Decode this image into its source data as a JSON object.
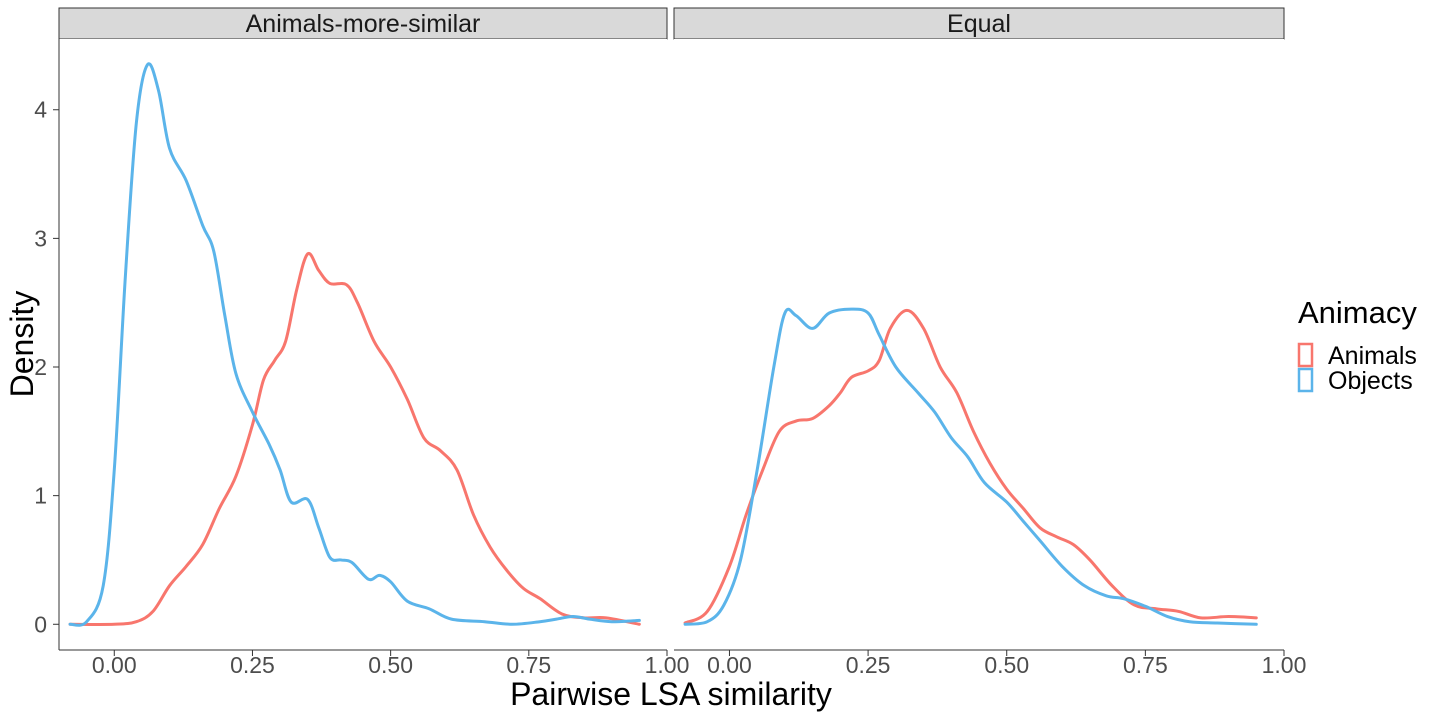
{
  "chart_data": {
    "type": "line",
    "xlabel": "Pairwise LSA similarity",
    "ylabel": "Density",
    "xlim": [
      -0.1,
      1.0
    ],
    "ylim": [
      -0.2,
      4.55
    ],
    "x_ticks": [
      0.0,
      0.25,
      0.5,
      0.75,
      1.0
    ],
    "x_tick_labels": [
      "0.00",
      "0.25",
      "0.50",
      "0.75",
      "1.00"
    ],
    "y_ticks": [
      0,
      1,
      2,
      3,
      4
    ],
    "y_tick_labels": [
      "0",
      "1",
      "2",
      "3",
      "4"
    ],
    "grid": false,
    "legend": {
      "title": "Animacy",
      "position": "right",
      "entries": [
        {
          "label": "Animals",
          "color": "#F8766D"
        },
        {
          "label": "Objects",
          "color": "#5BB4EA"
        }
      ]
    },
    "panels": [
      {
        "strip_label": "Animals-more-similar",
        "series": [
          {
            "name": "Animals",
            "color": "#F8766D",
            "points": [
              [
                -0.08,
                0
              ],
              [
                0.0,
                0.0
              ],
              [
                0.04,
                0.02
              ],
              [
                0.07,
                0.1
              ],
              [
                0.1,
                0.3
              ],
              [
                0.13,
                0.45
              ],
              [
                0.16,
                0.62
              ],
              [
                0.19,
                0.9
              ],
              [
                0.22,
                1.15
              ],
              [
                0.25,
                1.55
              ],
              [
                0.27,
                1.9
              ],
              [
                0.29,
                2.05
              ],
              [
                0.31,
                2.2
              ],
              [
                0.33,
                2.6
              ],
              [
                0.35,
                2.88
              ],
              [
                0.37,
                2.75
              ],
              [
                0.39,
                2.65
              ],
              [
                0.42,
                2.64
              ],
              [
                0.44,
                2.5
              ],
              [
                0.47,
                2.2
              ],
              [
                0.5,
                2.0
              ],
              [
                0.53,
                1.75
              ],
              [
                0.56,
                1.45
              ],
              [
                0.59,
                1.35
              ],
              [
                0.62,
                1.2
              ],
              [
                0.65,
                0.85
              ],
              [
                0.68,
                0.6
              ],
              [
                0.71,
                0.42
              ],
              [
                0.74,
                0.28
              ],
              [
                0.77,
                0.2
              ],
              [
                0.81,
                0.08
              ],
              [
                0.85,
                0.05
              ],
              [
                0.89,
                0.05
              ],
              [
                0.95,
                0.0
              ]
            ]
          },
          {
            "name": "Objects",
            "color": "#5BB4EA",
            "points": [
              [
                -0.08,
                0
              ],
              [
                -0.05,
                0.02
              ],
              [
                -0.02,
                0.3
              ],
              [
                0.0,
                1.2
              ],
              [
                0.02,
                2.7
              ],
              [
                0.04,
                3.9
              ],
              [
                0.06,
                4.35
              ],
              [
                0.08,
                4.15
              ],
              [
                0.1,
                3.7
              ],
              [
                0.13,
                3.45
              ],
              [
                0.16,
                3.1
              ],
              [
                0.18,
                2.9
              ],
              [
                0.2,
                2.4
              ],
              [
                0.22,
                1.95
              ],
              [
                0.25,
                1.65
              ],
              [
                0.28,
                1.4
              ],
              [
                0.3,
                1.2
              ],
              [
                0.32,
                0.95
              ],
              [
                0.35,
                0.97
              ],
              [
                0.37,
                0.75
              ],
              [
                0.39,
                0.52
              ],
              [
                0.41,
                0.5
              ],
              [
                0.43,
                0.48
              ],
              [
                0.46,
                0.35
              ],
              [
                0.48,
                0.38
              ],
              [
                0.5,
                0.33
              ],
              [
                0.53,
                0.18
              ],
              [
                0.57,
                0.12
              ],
              [
                0.61,
                0.04
              ],
              [
                0.67,
                0.02
              ],
              [
                0.72,
                0.0
              ],
              [
                0.77,
                0.02
              ],
              [
                0.8,
                0.04
              ],
              [
                0.83,
                0.06
              ],
              [
                0.86,
                0.04
              ],
              [
                0.9,
                0.02
              ],
              [
                0.95,
                0.03
              ]
            ]
          }
        ]
      },
      {
        "strip_label": "Equal",
        "series": [
          {
            "name": "Animals",
            "color": "#F8766D",
            "points": [
              [
                -0.08,
                0.01
              ],
              [
                -0.04,
                0.1
              ],
              [
                0.0,
                0.45
              ],
              [
                0.03,
                0.85
              ],
              [
                0.06,
                1.2
              ],
              [
                0.09,
                1.5
              ],
              [
                0.12,
                1.58
              ],
              [
                0.15,
                1.6
              ],
              [
                0.18,
                1.7
              ],
              [
                0.2,
                1.8
              ],
              [
                0.22,
                1.92
              ],
              [
                0.25,
                1.97
              ],
              [
                0.27,
                2.05
              ],
              [
                0.29,
                2.3
              ],
              [
                0.32,
                2.44
              ],
              [
                0.35,
                2.3
              ],
              [
                0.38,
                2.0
              ],
              [
                0.41,
                1.8
              ],
              [
                0.44,
                1.5
              ],
              [
                0.47,
                1.25
              ],
              [
                0.5,
                1.05
              ],
              [
                0.53,
                0.9
              ],
              [
                0.56,
                0.75
              ],
              [
                0.59,
                0.68
              ],
              [
                0.62,
                0.62
              ],
              [
                0.65,
                0.5
              ],
              [
                0.69,
                0.3
              ],
              [
                0.73,
                0.15
              ],
              [
                0.77,
                0.12
              ],
              [
                0.81,
                0.1
              ],
              [
                0.85,
                0.05
              ],
              [
                0.9,
                0.06
              ],
              [
                0.95,
                0.05
              ]
            ]
          },
          {
            "name": "Objects",
            "color": "#5BB4EA",
            "points": [
              [
                -0.08,
                0.0
              ],
              [
                -0.04,
                0.02
              ],
              [
                -0.01,
                0.15
              ],
              [
                0.02,
                0.5
              ],
              [
                0.05,
                1.2
              ],
              [
                0.08,
                2.0
              ],
              [
                0.1,
                2.42
              ],
              [
                0.12,
                2.4
              ],
              [
                0.15,
                2.3
              ],
              [
                0.18,
                2.42
              ],
              [
                0.22,
                2.45
              ],
              [
                0.25,
                2.42
              ],
              [
                0.27,
                2.25
              ],
              [
                0.3,
                2.0
              ],
              [
                0.34,
                1.8
              ],
              [
                0.37,
                1.65
              ],
              [
                0.4,
                1.45
              ],
              [
                0.43,
                1.3
              ],
              [
                0.46,
                1.1
              ],
              [
                0.5,
                0.95
              ],
              [
                0.53,
                0.8
              ],
              [
                0.56,
                0.65
              ],
              [
                0.6,
                0.45
              ],
              [
                0.64,
                0.3
              ],
              [
                0.68,
                0.22
              ],
              [
                0.71,
                0.2
              ],
              [
                0.75,
                0.14
              ],
              [
                0.79,
                0.06
              ],
              [
                0.83,
                0.02
              ],
              [
                0.88,
                0.01
              ],
              [
                0.95,
                0.0
              ]
            ]
          }
        ]
      }
    ]
  }
}
